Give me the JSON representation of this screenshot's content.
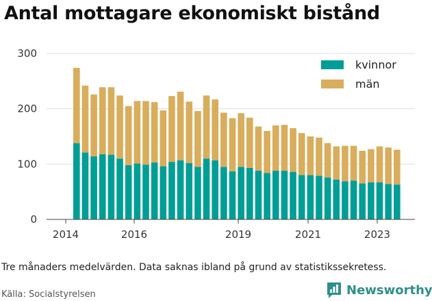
{
  "title": "Antal mottagare ekonomiskt bistånd",
  "note": "Tre månaders medelvärden. Data saknas ibland på grund av statistikssekretess.",
  "source": "Källa: Socialstyrelsen",
  "brand": {
    "name": "Newsworthy",
    "icon": "newsworthy-logo-icon"
  },
  "colors": {
    "kvinnor": "#009e96",
    "man": "#d9ad5c",
    "grid": "#dddddd"
  },
  "chart_data": {
    "type": "bar",
    "stacked": true,
    "x_ticks": [
      "2014",
      "2016",
      "2019",
      "2021",
      "2023"
    ],
    "y_ticks": [
      "0",
      "100",
      "200",
      "300"
    ],
    "ylim": [
      0,
      300
    ],
    "grid": true,
    "legend_position": "top-right",
    "series": [
      {
        "name": "kvinnor",
        "values": [
          138,
          121,
          114,
          118,
          117,
          110,
          98,
          101,
          99,
          103,
          96,
          104,
          107,
          102,
          95,
          110,
          107,
          95,
          87,
          95,
          93,
          88,
          84,
          88,
          88,
          86,
          80,
          80,
          79,
          76,
          72,
          69,
          70,
          65,
          67,
          67,
          64,
          63
        ]
      },
      {
        "name": "män",
        "values": [
          136,
          121,
          112,
          121,
          122,
          114,
          107,
          113,
          115,
          109,
          101,
          119,
          124,
          111,
          101,
          114,
          110,
          98,
          96,
          97,
          91,
          80,
          76,
          82,
          83,
          79,
          76,
          70,
          69,
          62,
          60,
          64,
          63,
          59,
          60,
          65,
          66,
          63
        ]
      }
    ]
  }
}
